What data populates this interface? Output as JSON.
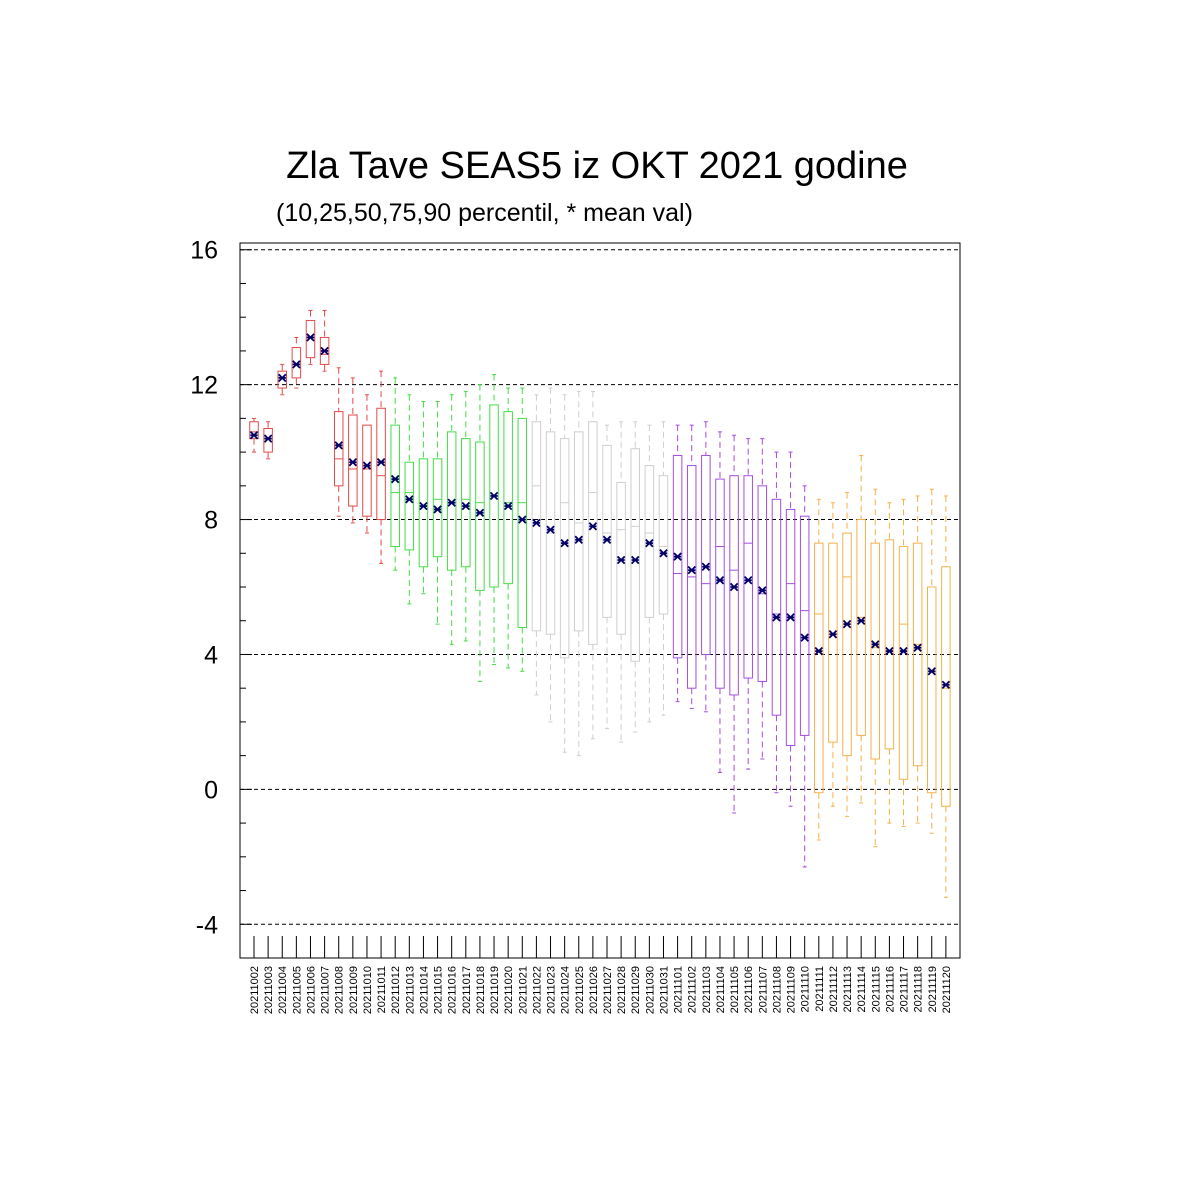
{
  "chart_data": {
    "type": "boxplot",
    "title": "Zla Tave SEAS5 iz OKT 2021 godine",
    "subtitle": "(10,25,50,75,90 percentil, * mean val)",
    "ylim": [
      -5,
      16.2
    ],
    "yticks": [
      -4,
      0,
      4,
      8,
      12,
      16
    ],
    "grid_y": [
      -4,
      0,
      4,
      8,
      12,
      16
    ],
    "mean_marker_color": "#000066",
    "categories": [
      "20211002",
      "20211003",
      "20211004",
      "20211005",
      "20211006",
      "20211007",
      "20211008",
      "20211009",
      "20211010",
      "20211011",
      "20211012",
      "20211013",
      "20211014",
      "20211015",
      "20211016",
      "20211017",
      "20211018",
      "20211019",
      "20211020",
      "20211021",
      "20211022",
      "20211023",
      "20211024",
      "20211025",
      "20211026",
      "20211027",
      "20211028",
      "20211029",
      "20211030",
      "20211031",
      "20211101",
      "20211102",
      "20211103",
      "20211104",
      "20211105",
      "20211106",
      "20211107",
      "20211108",
      "20211109",
      "20211110",
      "20211111",
      "20211112",
      "20211113",
      "20211114",
      "20211115",
      "20211116",
      "20211117",
      "20211118",
      "20211119",
      "20211120"
    ],
    "colors": [
      "#e34a4a",
      "#e34a4a",
      "#e34a4a",
      "#e34a4a",
      "#e34a4a",
      "#e34a4a",
      "#e34a4a",
      "#e34a4a",
      "#e34a4a",
      "#e34a4a",
      "#44dd44",
      "#44dd44",
      "#44dd44",
      "#44dd44",
      "#44dd44",
      "#44dd44",
      "#44dd44",
      "#44dd44",
      "#44dd44",
      "#44dd44",
      "#cfcfcf",
      "#cfcfcf",
      "#cfcfcf",
      "#cfcfcf",
      "#cfcfcf",
      "#cfcfcf",
      "#cfcfcf",
      "#cfcfcf",
      "#cfcfcf",
      "#cfcfcf",
      "#a64de0",
      "#a64de0",
      "#a64de0",
      "#a64de0",
      "#a64de0",
      "#a64de0",
      "#a64de0",
      "#a64de0",
      "#a64de0",
      "#a64de0",
      "#f5b14a",
      "#f5b14a",
      "#f5b14a",
      "#f5b14a",
      "#f5b14a",
      "#f5b14a",
      "#f5b14a",
      "#f5b14a",
      "#f5b14a",
      "#f5b14a"
    ],
    "p10": [
      10.0,
      9.8,
      11.7,
      11.9,
      12.6,
      12.4,
      8.1,
      7.9,
      7.6,
      6.7,
      6.5,
      5.5,
      5.8,
      4.9,
      4.3,
      4.4,
      3.2,
      3.7,
      3.6,
      3.5,
      2.8,
      2.0,
      1.1,
      1.0,
      1.5,
      1.8,
      1.4,
      1.7,
      2.0,
      2.2,
      2.6,
      2.4,
      2.3,
      0.5,
      -0.7,
      0.6,
      0.9,
      -0.1,
      -0.5,
      -2.3,
      -1.5,
      -0.5,
      -0.8,
      -0.4,
      -1.7,
      -1.0,
      -1.1,
      -1.0,
      -1.3,
      -3.2
    ],
    "p25": [
      10.4,
      10.0,
      11.9,
      12.2,
      12.8,
      12.6,
      9.0,
      8.4,
      8.1,
      8.0,
      7.2,
      7.1,
      6.6,
      6.9,
      6.5,
      6.6,
      5.9,
      6.0,
      6.1,
      4.8,
      4.7,
      4.6,
      3.9,
      4.7,
      4.3,
      5.1,
      4.6,
      3.8,
      5.1,
      5.2,
      3.9,
      3.0,
      4.0,
      3.0,
      2.8,
      3.3,
      3.2,
      2.2,
      1.3,
      1.6,
      -0.1,
      1.4,
      1.0,
      1.6,
      0.9,
      1.2,
      0.3,
      0.7,
      -0.1,
      -0.5
    ],
    "p50": [
      10.6,
      10.4,
      12.2,
      12.6,
      13.4,
      12.9,
      9.8,
      9.5,
      9.5,
      9.3,
      8.8,
      8.8,
      8.4,
      8.6,
      8.5,
      8.6,
      8.5,
      8.7,
      8.5,
      8.5,
      9.0,
      7.6,
      8.5,
      7.9,
      8.8,
      7.6,
      7.7,
      7.8,
      7.6,
      7.2,
      6.4,
      6.3,
      6.1,
      7.2,
      6.5,
      7.3,
      5.8,
      5.2,
      6.1,
      5.3,
      5.2,
      4.6,
      6.3,
      5.1,
      4.2,
      4.1,
      4.9,
      4.3,
      3.5,
      3.0
    ],
    "p75": [
      10.9,
      10.7,
      12.4,
      13.1,
      13.9,
      13.4,
      11.2,
      11.1,
      10.8,
      11.3,
      10.8,
      9.7,
      9.8,
      9.8,
      10.6,
      10.4,
      10.3,
      11.4,
      11.2,
      11.0,
      10.9,
      10.6,
      10.4,
      10.6,
      10.9,
      10.2,
      9.1,
      10.1,
      9.6,
      9.3,
      9.9,
      9.6,
      9.9,
      9.2,
      9.3,
      9.3,
      9.0,
      8.6,
      8.3,
      8.1,
      7.3,
      7.3,
      7.6,
      8.0,
      7.3,
      7.4,
      7.2,
      7.3,
      6.0,
      6.6
    ],
    "p90": [
      11.0,
      10.9,
      12.6,
      13.4,
      14.2,
      14.2,
      12.5,
      12.2,
      11.7,
      12.4,
      12.2,
      11.7,
      11.5,
      11.5,
      11.7,
      11.8,
      12.0,
      12.3,
      11.9,
      11.9,
      11.7,
      11.9,
      11.7,
      11.8,
      11.8,
      10.8,
      10.9,
      10.9,
      10.8,
      10.9,
      10.8,
      10.8,
      10.9,
      10.6,
      10.5,
      10.4,
      10.4,
      10.0,
      10.0,
      9.0,
      8.6,
      8.5,
      8.8,
      9.9,
      8.9,
      8.5,
      8.6,
      8.7,
      8.9,
      8.7
    ],
    "mean": [
      10.5,
      10.4,
      12.2,
      12.6,
      13.4,
      13.0,
      10.2,
      9.7,
      9.6,
      9.7,
      9.2,
      8.6,
      8.4,
      8.3,
      8.5,
      8.4,
      8.2,
      8.7,
      8.4,
      8.0,
      7.9,
      7.7,
      7.3,
      7.4,
      7.8,
      7.4,
      6.8,
      6.8,
      7.3,
      7.0,
      6.9,
      6.5,
      6.6,
      6.2,
      6.0,
      6.2,
      5.9,
      5.1,
      5.1,
      4.5,
      4.1,
      4.6,
      4.9,
      5.0,
      4.3,
      4.1,
      4.1,
      4.2,
      3.5,
      3.1
    ]
  }
}
